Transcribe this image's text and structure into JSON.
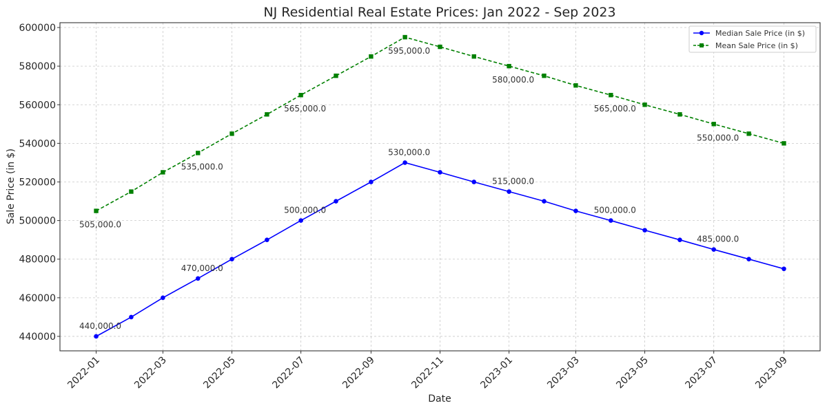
{
  "chart_data": {
    "type": "line",
    "title": "NJ Residential Real Estate Prices: Jan 2022 - Sep 2023",
    "xlabel": "Date",
    "ylabel": "Sale Price (in $)",
    "x": [
      "2022-01-01",
      "2022-02-01",
      "2022-03-01",
      "2022-04-01",
      "2022-05-01",
      "2022-06-01",
      "2022-07-01",
      "2022-08-01",
      "2022-09-01",
      "2022-10-01",
      "2022-11-01",
      "2022-12-01",
      "2023-01-01",
      "2023-02-01",
      "2023-03-01",
      "2023-04-01",
      "2023-05-01",
      "2023-06-01",
      "2023-07-01",
      "2023-08-01",
      "2023-09-01"
    ],
    "x_ticks": [
      "2022-01",
      "2022-03",
      "2022-05",
      "2022-07",
      "2022-09",
      "2022-11",
      "2023-01",
      "2023-03",
      "2023-05",
      "2023-07",
      "2023-09"
    ],
    "xlim": [
      "2021-11-30",
      "2023-10-03"
    ],
    "y_ticks": [
      440000,
      460000,
      480000,
      500000,
      520000,
      540000,
      560000,
      580000,
      600000
    ],
    "ylim": [
      432500,
      602500
    ],
    "grid": true,
    "legend_position": "top-right",
    "series": [
      {
        "name": "Median Sale Price (in $)",
        "color": "#0000ff",
        "line_style": "solid",
        "marker": "circle",
        "values": [
          440000,
          450000,
          460000,
          470000,
          480000,
          490000,
          500000,
          510000,
          520000,
          530000,
          525000,
          520000,
          515000,
          510000,
          505000,
          500000,
          495000,
          490000,
          485000,
          480000,
          475000
        ],
        "annotated_indices": [
          0,
          3,
          6,
          9,
          12,
          15,
          18
        ],
        "annotation_texts": [
          "440,000.0",
          "470,000.0",
          "500,000.0",
          "530,000.0",
          "515,000.0",
          "500,000.0",
          "485,000.0"
        ]
      },
      {
        "name": "Mean Sale Price (in $)",
        "color": "#008000",
        "line_style": "dashed",
        "marker": "square",
        "values": [
          505000,
          515000,
          525000,
          535000,
          545000,
          555000,
          565000,
          575000,
          585000,
          595000,
          590000,
          585000,
          580000,
          575000,
          570000,
          565000,
          560000,
          555000,
          550000,
          545000,
          540000
        ],
        "annotated_indices": [
          0,
          3,
          6,
          9,
          12,
          15,
          18
        ],
        "annotation_texts": [
          "505,000.0",
          "535,000.0",
          "565,000.0",
          "595,000.0",
          "580,000.0",
          "565,000.0",
          "550,000.0"
        ]
      }
    ]
  }
}
